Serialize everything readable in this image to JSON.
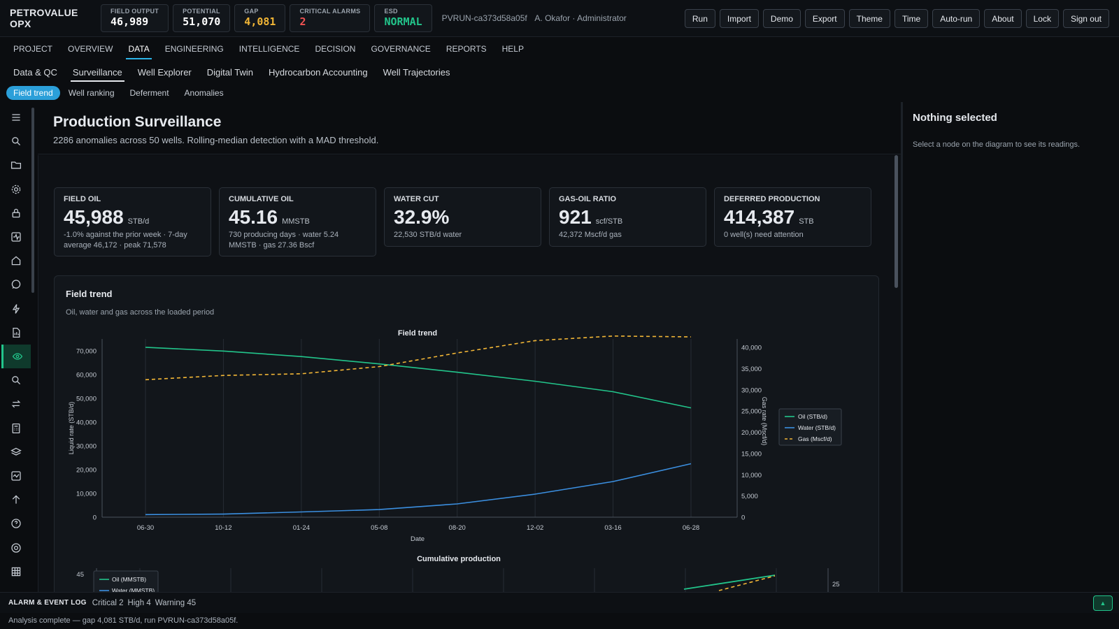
{
  "app": {
    "title": "PETROVALUE OPX"
  },
  "header": {
    "kpis": [
      {
        "label": "FIELD OUTPUT",
        "value": "46,989",
        "color": "#ffffff"
      },
      {
        "label": "POTENTIAL",
        "value": "51,070",
        "color": "#ffffff"
      },
      {
        "label": "GAP",
        "value": "4,081",
        "color": "#f2b636"
      },
      {
        "label": "CRITICAL ALARMS",
        "value": "2",
        "color": "#f05252"
      },
      {
        "label": "ESD",
        "value": "NORMAL",
        "color": "#22c58b"
      }
    ],
    "run_id": "PVRUN-ca373d58a05f",
    "user": "A. Okafor · Administrator",
    "buttons": [
      "Run",
      "Import",
      "Demo",
      "Export",
      "Theme",
      "Time",
      "Auto-run",
      "About",
      "Lock",
      "Sign out"
    ]
  },
  "main_nav": [
    "PROJECT",
    "OVERVIEW",
    "DATA",
    "ENGINEERING",
    "INTELLIGENCE",
    "DECISION",
    "GOVERNANCE",
    "REPORTS",
    "HELP"
  ],
  "main_nav_active": "DATA",
  "sub_nav": [
    "Data & QC",
    "Surveillance",
    "Well Explorer",
    "Digital Twin",
    "Hydrocarbon Accounting",
    "Well Trajectories"
  ],
  "sub_nav_active": "Surveillance",
  "pills": [
    "Field trend",
    "Well ranking",
    "Deferment",
    "Anomalies"
  ],
  "pills_active": "Field trend",
  "side_rail_icons": [
    "menu-icon",
    "search-icon",
    "folder-icon",
    "gear-icon",
    "lock-icon",
    "activity-icon",
    "home-icon",
    "chat-icon",
    "bolt-icon",
    "report-icon",
    "eye-icon",
    "search-icon",
    "swap-icon",
    "calculator-icon",
    "layers-icon",
    "pulse-icon",
    "arrow-up-icon",
    "help-icon",
    "target-icon",
    "grid-icon"
  ],
  "side_rail_active": "eye-icon",
  "page": {
    "title": "Production Surveillance",
    "subtitle": "2286 anomalies across 50 wells. Rolling-median detection with a MAD threshold."
  },
  "kpi_cards": [
    {
      "title": "FIELD OIL",
      "value": "45,988",
      "unit": "STB/d",
      "detail": "-1.0% against the prior week · 7-day average 46,172 · peak 71,578"
    },
    {
      "title": "CUMULATIVE OIL",
      "value": "45.16",
      "unit": "MMSTB",
      "detail": "730 producing days · water 5.24 MMSTB · gas 27.36 Bscf"
    },
    {
      "title": "WATER CUT",
      "value": "32.9%",
      "unit": "",
      "detail": "22,530 STB/d water"
    },
    {
      "title": "GAS-OIL RATIO",
      "value": "921",
      "unit": "scf/STB",
      "detail": "42,372 Mscf/d gas"
    },
    {
      "title": "DEFERRED PRODUCTION",
      "value": "414,387",
      "unit": "STB",
      "detail": "0 well(s) need attention"
    }
  ],
  "trend_card": {
    "title": "Field trend",
    "subtitle": "Oil, water and gas across the loaded period"
  },
  "right_panel": {
    "title": "Nothing selected",
    "hint": "Select a node on the diagram to see its readings."
  },
  "alarm_log": {
    "title": "ALARM & EVENT LOG",
    "critical": "Critical 2",
    "high": "High 4",
    "warning": "Warning 45"
  },
  "status_bar": "Analysis complete — gap 4,081 STB/d, run PVRUN-ca373d58a05f.",
  "colors": {
    "oil": "#22c58b",
    "water": "#3b8fe0",
    "gas": "#f2b636",
    "accent": "#2bb3e6"
  },
  "chart_data": [
    {
      "type": "line",
      "title": "Field trend",
      "xlabel": "Date",
      "ylabel": "Liquid rate (STB/d)",
      "y2label": "Gas rate (Mscf/d)",
      "x": [
        "06-30",
        "10-12",
        "01-24",
        "05-08",
        "08-20",
        "12-02",
        "03-16",
        "06-28"
      ],
      "ylim": [
        0,
        75000
      ],
      "y2lim": [
        0,
        42000
      ],
      "yticks": [
        "0",
        "10,000",
        "20,000",
        "30,000",
        "40,000",
        "50,000",
        "60,000",
        "70,000"
      ],
      "y2ticks": [
        "0",
        "5,000",
        "10,000",
        "15,000",
        "20,000",
        "25,000",
        "30,000",
        "35,000",
        "40,000"
      ],
      "legend": "right",
      "grid": true,
      "series": [
        {
          "name": "Oil (STB/d)",
          "axis": "left",
          "style": "solid",
          "values": [
            71500,
            69900,
            67600,
            64500,
            61000,
            57200,
            52800,
            46000
          ]
        },
        {
          "name": "Water (STB/d)",
          "axis": "left",
          "style": "solid",
          "values": [
            1100,
            1300,
            2200,
            3200,
            5600,
            9700,
            15000,
            22500
          ]
        },
        {
          "name": "Gas (Mscf/d)",
          "axis": "right",
          "style": "dashed",
          "values": [
            32400,
            33400,
            33800,
            35500,
            38700,
            41600,
            42700,
            42500
          ]
        }
      ]
    },
    {
      "type": "line",
      "title": "Cumulative production",
      "ytick_visible": "45",
      "y2tick_visible": "25",
      "legend": "top-left",
      "series": [
        {
          "name": "Oil (MMSTB)"
        },
        {
          "name": "Water (MMSTB)"
        }
      ]
    }
  ]
}
